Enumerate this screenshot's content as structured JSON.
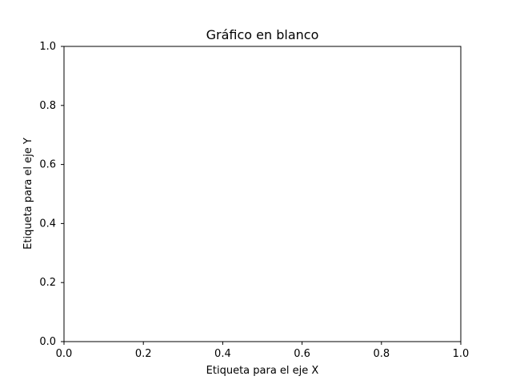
{
  "chart_data": {
    "type": "scatter",
    "title": "Gráfico en blanco",
    "xlabel": "Etiqueta para el eje X",
    "ylabel": "Etiqueta para el eje Y",
    "xlim": [
      0.0,
      1.0
    ],
    "ylim": [
      0.0,
      1.0
    ],
    "x_ticks": [
      0.0,
      0.2,
      0.4,
      0.6,
      0.8,
      1.0
    ],
    "y_ticks": [
      0.0,
      0.2,
      0.4,
      0.6,
      0.8,
      1.0
    ],
    "x_tick_labels": [
      "0.0",
      "0.2",
      "0.4",
      "0.6",
      "0.8",
      "1.0"
    ],
    "y_tick_labels": [
      "0.0",
      "0.2",
      "0.4",
      "0.6",
      "0.8",
      "1.0"
    ],
    "grid": false,
    "series": [],
    "colors": {
      "background": "#ffffff",
      "axes": "#000000",
      "text": "#000000"
    }
  }
}
